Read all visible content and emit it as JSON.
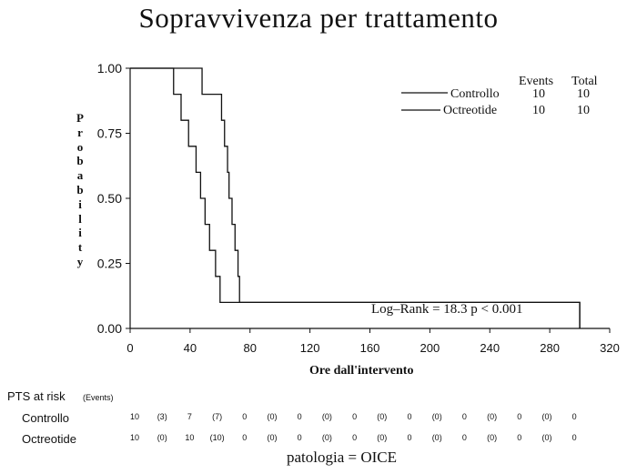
{
  "chart_data": {
    "type": "line",
    "step": true,
    "title": "Sopravvivenza per trattamento",
    "xlabel": "Ore dall'intervento",
    "ylabel": "Probability",
    "xlim": [
      0,
      320
    ],
    "ylim": [
      0,
      1
    ],
    "xticks": [
      "0",
      "40",
      "80",
      "120",
      "160",
      "200",
      "240",
      "280",
      "320"
    ],
    "yticks": [
      "0.00",
      "0.25",
      "0.50",
      "0.75",
      "1.00"
    ],
    "series": [
      {
        "name": "Controllo",
        "x": [
          0,
          29,
          34,
          39,
          44,
          47,
          50,
          53,
          57,
          60,
          300
        ],
        "y": [
          1.0,
          0.9,
          0.8,
          0.7,
          0.6,
          0.5,
          0.4,
          0.3,
          0.2,
          0.1,
          0.0
        ],
        "color": "#111111"
      },
      {
        "name": "Octreotide",
        "x": [
          0,
          48,
          58,
          61,
          63,
          65,
          66,
          68,
          70,
          72,
          73,
          300
        ],
        "y": [
          1.0,
          0.9,
          0.9,
          0.8,
          0.7,
          0.6,
          0.5,
          0.4,
          0.3,
          0.2,
          0.1,
          0.0
        ],
        "color": "#111111"
      }
    ],
    "legend": {
      "position": "top-right",
      "headers": [
        "Events",
        "Total"
      ],
      "rows": [
        {
          "name": "Controllo",
          "events": "10",
          "total": "10"
        },
        {
          "name": "Octreotide",
          "events": "10",
          "total": "10"
        }
      ]
    },
    "annotation": "Log–Rank = 18.3   p < 0.001"
  },
  "risk_table": {
    "title": "PTS at risk",
    "events_label": "(Events)",
    "rows": [
      {
        "name": "Controllo",
        "values": [
          "10",
          "(3)",
          "7",
          "(7)",
          "0",
          "(0)",
          "0",
          "(0)",
          "0",
          "(0)",
          "0",
          "(0)",
          "0",
          "(0)",
          "0",
          "(0)",
          "0"
        ]
      },
      {
        "name": "Octreotide",
        "values": [
          "10",
          "(0)",
          "10",
          "(10)",
          "0",
          "(0)",
          "0",
          "(0)",
          "0",
          "(0)",
          "0",
          "(0)",
          "0",
          "(0)",
          "0",
          "(0)",
          "0"
        ]
      }
    ]
  },
  "footer": "patologia = OICE"
}
